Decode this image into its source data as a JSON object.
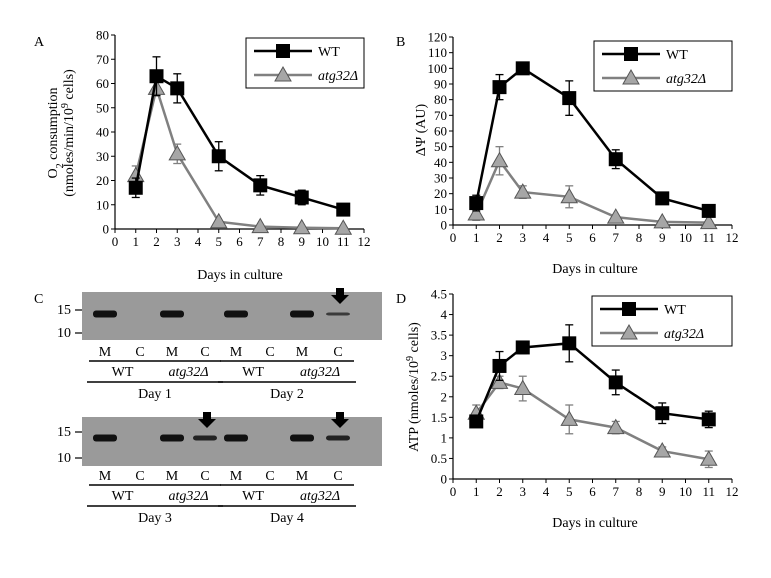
{
  "figure": {
    "days_in_culture_label": "Days in culture"
  },
  "chart_data": [
    {
      "panel": "A",
      "type": "line",
      "ylabel_line1": "O",
      "ylabel_sub": "2",
      "ylabel_line1_rest": " consumption",
      "ylabel_line2": "(nmoles/min/10",
      "ylabel_line2_sup": "9",
      "ylabel_line2_rest": " cells)",
      "xlabel": "Days in culture",
      "xlim": [
        0,
        12
      ],
      "ylim": [
        0,
        80
      ],
      "xticks": [
        0,
        1,
        2,
        3,
        4,
        5,
        6,
        7,
        8,
        9,
        10,
        11,
        12
      ],
      "yticks": [
        0,
        10,
        20,
        30,
        40,
        50,
        60,
        70,
        80
      ],
      "legend": [
        "WT",
        "atg32Δ"
      ],
      "legend_position": "top-right",
      "series": [
        {
          "name": "WT",
          "marker": "square",
          "color": "#000000",
          "x": [
            1,
            2,
            3,
            5,
            7,
            9,
            11
          ],
          "y": [
            17,
            63,
            58,
            30,
            18,
            13,
            8
          ],
          "err": [
            4,
            8,
            6,
            6,
            4,
            3,
            0
          ]
        },
        {
          "name": "atg32Δ",
          "marker": "triangle",
          "color": "#808080",
          "x": [
            1,
            2,
            3,
            5,
            7,
            9,
            11
          ],
          "y": [
            22,
            58,
            31,
            3,
            1,
            0.5,
            0.3
          ],
          "err": [
            4,
            3,
            4,
            0,
            0,
            0,
            0
          ]
        }
      ]
    },
    {
      "panel": "B",
      "type": "line",
      "ylabel": "ΔΨ (AU)",
      "xlabel": "Days in culture",
      "xlim": [
        0,
        12
      ],
      "ylim": [
        0,
        120
      ],
      "xticks": [
        0,
        1,
        2,
        3,
        4,
        5,
        6,
        7,
        8,
        9,
        10,
        11,
        12
      ],
      "yticks": [
        0,
        10,
        20,
        30,
        40,
        50,
        60,
        70,
        80,
        90,
        100,
        110,
        120
      ],
      "legend": [
        "WT",
        "atg32Δ"
      ],
      "legend_position": "top-right",
      "series": [
        {
          "name": "WT",
          "marker": "square",
          "color": "#000000",
          "x": [
            1,
            2,
            3,
            5,
            7,
            9,
            11
          ],
          "y": [
            14,
            88,
            100,
            81,
            42,
            17,
            9
          ],
          "err": [
            5,
            8,
            3,
            11,
            6,
            0,
            0
          ]
        },
        {
          "name": "atg32Δ",
          "marker": "triangle",
          "color": "#808080",
          "x": [
            1,
            2,
            3,
            5,
            7,
            9,
            11
          ],
          "y": [
            7,
            41,
            21,
            18,
            5,
            2,
            1.5
          ],
          "err": [
            4,
            9,
            4,
            7,
            0,
            0,
            0
          ]
        }
      ]
    },
    {
      "panel": "D",
      "type": "line",
      "ylabel": "ATP (nmoles/10",
      "ylabel_sup": "9",
      "ylabel_rest": " cells)",
      "xlabel": "Days in culture",
      "xlim": [
        0,
        12
      ],
      "ylim": [
        0,
        4.5
      ],
      "xticks": [
        0,
        1,
        2,
        3,
        4,
        5,
        6,
        7,
        8,
        9,
        10,
        11,
        12
      ],
      "yticks": [
        0,
        0.5,
        1,
        1.5,
        2,
        2.5,
        3,
        3.5,
        4,
        4.5
      ],
      "legend": [
        "WT",
        "atg32Δ"
      ],
      "legend_position": "top-right",
      "series": [
        {
          "name": "WT",
          "marker": "square",
          "color": "#000000",
          "x": [
            1,
            2,
            3,
            5,
            7,
            9,
            11
          ],
          "y": [
            1.4,
            2.75,
            3.2,
            3.3,
            2.35,
            1.6,
            1.45
          ],
          "err": [
            0.1,
            0.35,
            0.15,
            0.45,
            0.3,
            0.25,
            0.2
          ]
        },
        {
          "name": "atg32Δ",
          "marker": "triangle",
          "color": "#808080",
          "x": [
            1,
            2,
            3,
            5,
            7,
            9,
            11
          ],
          "y": [
            1.6,
            2.35,
            2.2,
            1.45,
            1.25,
            0.68,
            0.48
          ],
          "err": [
            0.2,
            0.15,
            0.3,
            0.35,
            0.15,
            0.1,
            0.2
          ]
        }
      ]
    }
  ],
  "panel_c": {
    "label": "C",
    "mw_top": "15",
    "mw_bottom": "10",
    "lane_labels": [
      "M",
      "C"
    ],
    "strains": [
      "WT",
      "atg32Δ"
    ],
    "days": [
      "Day 1",
      "Day 2",
      "Day 3",
      "Day 4"
    ],
    "blots": [
      {
        "row": 1,
        "lanes": [
          {
            "band": "strong"
          },
          {
            "band": "none"
          },
          {
            "band": "strong"
          },
          {
            "band": "none"
          },
          {
            "band": "strong"
          },
          {
            "band": "none"
          },
          {
            "band": "strong"
          },
          {
            "band": "faint",
            "arrow": true
          }
        ]
      },
      {
        "row": 2,
        "lanes": [
          {
            "band": "strong"
          },
          {
            "band": "none"
          },
          {
            "band": "strong"
          },
          {
            "band": "medium",
            "arrow": true
          },
          {
            "band": "strong"
          },
          {
            "band": "none"
          },
          {
            "band": "strong"
          },
          {
            "band": "medium",
            "arrow": true
          }
        ]
      }
    ]
  }
}
